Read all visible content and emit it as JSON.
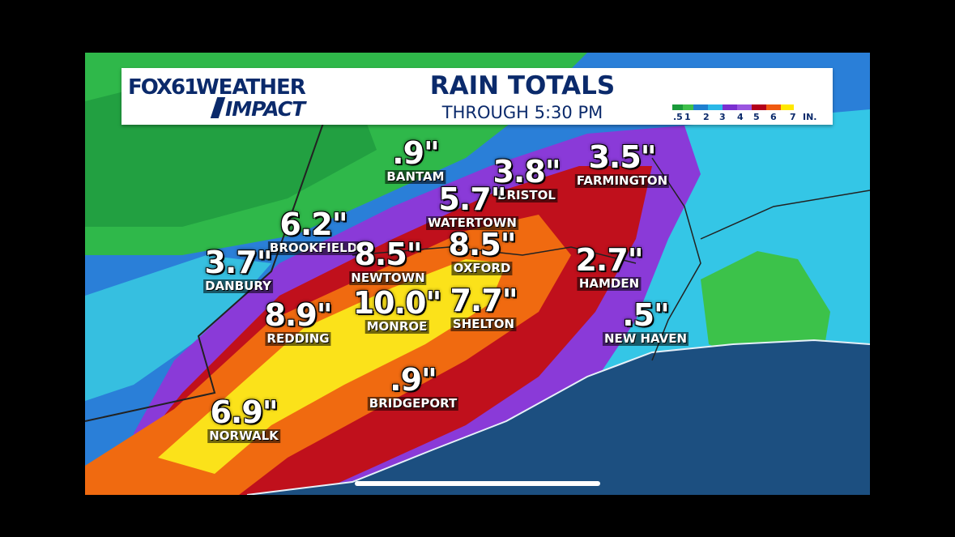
{
  "header": {
    "logo_fox": "FOX61",
    "logo_weather": "WEATHER",
    "logo_impact": "IMPACT",
    "title": "RAIN TOTALS",
    "subtitle": "THROUGH 5:30 PM"
  },
  "legend": {
    "labels": [
      ".5",
      "1",
      "2",
      "3",
      "4",
      "5",
      "6",
      "7",
      "IN."
    ],
    "colors": [
      "#1a9a3a",
      "#3fc04a",
      "#1e7fd0",
      "#2ab8e8",
      "#7a2fd0",
      "#9a55e0",
      "#b3001a",
      "#f05a10",
      "#ffe800"
    ]
  },
  "totals": [
    {
      "value": ".9\"",
      "town": "BANTAM"
    },
    {
      "value": "3.8\"",
      "town": "BRISTOL"
    },
    {
      "value": "3.5\"",
      "town": "FARMINGTON"
    },
    {
      "value": "5.7\"",
      "town": "WATERTOWN"
    },
    {
      "value": "6.2\"",
      "town": "BROOKFIELD"
    },
    {
      "value": "8.5\"",
      "town": "NEWTOWN"
    },
    {
      "value": "8.5\"",
      "town": "OXFORD"
    },
    {
      "value": "3.7\"",
      "town": "DANBURY"
    },
    {
      "value": "2.7\"",
      "town": "HAMDEN"
    },
    {
      "value": "8.9\"",
      "town": "REDDING"
    },
    {
      "value": "10.0\"",
      "town": "MONROE"
    },
    {
      "value": "7.7\"",
      "town": "SHELTON"
    },
    {
      "value": ".5\"",
      "town": "NEW HAVEN"
    },
    {
      "value": ".9\"",
      "town": "BRIDGEPORT"
    },
    {
      "value": "6.9\"",
      "town": "NORWALK"
    }
  ],
  "colors": {
    "header_text": "#0b2a6b",
    "ocean": "#1a4a7a",
    "light_green": "#2fb84a",
    "dark_green": "#1a8a3a",
    "blue": "#2a7fd8",
    "cyan": "#34c6e6",
    "purple": "#8a3ad8",
    "red": "#c0101c",
    "orange": "#f06a10",
    "yellow": "#fbe21a"
  }
}
